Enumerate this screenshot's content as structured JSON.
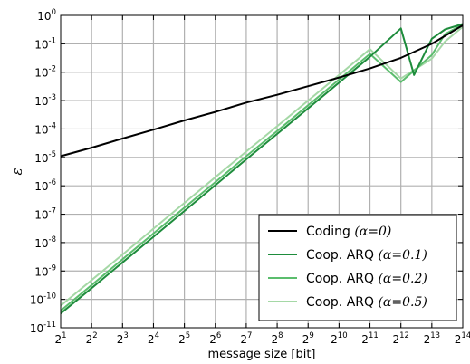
{
  "chart_data": {
    "type": "line",
    "xlabel": "message size [bit]",
    "ylabel": "ε",
    "x_scale": "log2",
    "y_scale": "log10",
    "xlim": [
      2,
      16384
    ],
    "ylim": [
      1e-11,
      1
    ],
    "grid": true,
    "legend_position": "bottom-right",
    "x_ticks": [
      {
        "base": "2",
        "exp": "1"
      },
      {
        "base": "2",
        "exp": "2"
      },
      {
        "base": "2",
        "exp": "3"
      },
      {
        "base": "2",
        "exp": "4"
      },
      {
        "base": "2",
        "exp": "5"
      },
      {
        "base": "2",
        "exp": "6"
      },
      {
        "base": "2",
        "exp": "7"
      },
      {
        "base": "2",
        "exp": "8"
      },
      {
        "base": "2",
        "exp": "9"
      },
      {
        "base": "2",
        "exp": "10"
      },
      {
        "base": "2",
        "exp": "11"
      },
      {
        "base": "2",
        "exp": "12"
      },
      {
        "base": "2",
        "exp": "13"
      },
      {
        "base": "2",
        "exp": "14"
      }
    ],
    "y_ticks": [
      {
        "base": "10",
        "exp": "0"
      },
      {
        "base": "10",
        "exp": "-1"
      },
      {
        "base": "10",
        "exp": "-2"
      },
      {
        "base": "10",
        "exp": "-3"
      },
      {
        "base": "10",
        "exp": "-4"
      },
      {
        "base": "10",
        "exp": "-5"
      },
      {
        "base": "10",
        "exp": "-6"
      },
      {
        "base": "10",
        "exp": "-7"
      },
      {
        "base": "10",
        "exp": "-8"
      },
      {
        "base": "10",
        "exp": "-9"
      },
      {
        "base": "10",
        "exp": "-10"
      },
      {
        "base": "10",
        "exp": "-11"
      }
    ],
    "series": [
      {
        "name": "Coding",
        "alpha": "(α=0)",
        "color": "#000000",
        "x": [
          2,
          4,
          8,
          16,
          32,
          64,
          128,
          256,
          512,
          1024,
          2048,
          4096,
          8192,
          16384
        ],
        "y": [
          1.1e-05,
          2.2e-05,
          4.6e-05,
          9.5e-05,
          0.0002,
          0.0004,
          0.00085,
          0.0016,
          0.0032,
          0.0065,
          0.0135,
          0.032,
          0.1,
          0.45
        ]
      },
      {
        "name": "Coop. ARQ",
        "alpha": "(α=0.1)",
        "color": "#1e8c3c",
        "x": [
          2,
          4,
          8,
          16,
          32,
          64,
          128,
          256,
          512,
          1024,
          2048,
          4096,
          5500,
          8192,
          11000,
          16384
        ],
        "y": [
          3.2e-11,
          2.5e-10,
          2e-09,
          1.6e-08,
          1.3e-07,
          1.05e-06,
          8.5e-06,
          6.7e-05,
          0.00053,
          0.0043,
          0.035,
          0.35,
          0.008,
          0.15,
          0.32,
          0.5
        ]
      },
      {
        "name": "Coop. ARQ",
        "alpha": "(α=0.2)",
        "color": "#5bbd6d",
        "x": [
          2,
          4,
          8,
          16,
          32,
          64,
          128,
          256,
          512,
          1024,
          2048,
          4096,
          8192,
          11000,
          16384
        ],
        "y": [
          4e-11,
          3.2e-10,
          2.6e-09,
          2.1e-08,
          1.7e-07,
          1.35e-06,
          1.1e-05,
          8.5e-05,
          0.00068,
          0.0055,
          0.044,
          0.0045,
          0.04,
          0.22,
          0.48
        ]
      },
      {
        "name": "Coop. ARQ",
        "alpha": "(α=0.5)",
        "color": "#a5d8a6",
        "x": [
          2,
          4,
          8,
          16,
          32,
          64,
          128,
          256,
          512,
          1024,
          2048,
          4096,
          8192,
          11000,
          16384
        ],
        "y": [
          6e-11,
          4.8e-10,
          3.8e-09,
          3.1e-08,
          2.5e-07,
          2e-06,
          1.6e-05,
          0.000125,
          0.001,
          0.008,
          0.065,
          0.006,
          0.03,
          0.12,
          0.4
        ]
      }
    ]
  }
}
